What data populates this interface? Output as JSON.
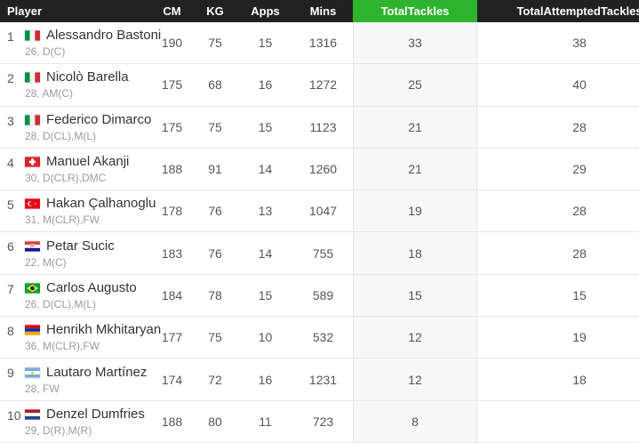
{
  "table": {
    "columns": [
      {
        "key": "player",
        "label": "Player"
      },
      {
        "key": "cm",
        "label": "CM"
      },
      {
        "key": "kg",
        "label": "KG"
      },
      {
        "key": "apps",
        "label": "Apps"
      },
      {
        "key": "mins",
        "label": "Mins"
      },
      {
        "key": "tt",
        "label": "TotalTackles"
      },
      {
        "key": "tat",
        "label": "TotalAttemptedTackles"
      }
    ],
    "rows": [
      {
        "rank": "1",
        "flag": "italy",
        "name": "Alessandro Bastoni",
        "details": "26, D(C)",
        "cm": "190",
        "kg": "75",
        "apps": "15",
        "mins": "1316",
        "tt": "33",
        "tat": "38"
      },
      {
        "rank": "2",
        "flag": "italy",
        "name": "Nicolò Barella",
        "details": "28, AM(C)",
        "cm": "175",
        "kg": "68",
        "apps": "16",
        "mins": "1272",
        "tt": "25",
        "tat": "40"
      },
      {
        "rank": "3",
        "flag": "italy",
        "name": "Federico Dimarco",
        "details": "28, D(CL),M(L)",
        "cm": "175",
        "kg": "75",
        "apps": "15",
        "mins": "1123",
        "tt": "21",
        "tat": "28"
      },
      {
        "rank": "4",
        "flag": "switzerland",
        "name": "Manuel Akanji",
        "details": "30, D(CLR),DMC",
        "cm": "188",
        "kg": "91",
        "apps": "14",
        "mins": "1260",
        "tt": "21",
        "tat": "29"
      },
      {
        "rank": "5",
        "flag": "turkey",
        "name": "Hakan Çalhanoglu",
        "details": "31, M(CLR),FW",
        "cm": "178",
        "kg": "76",
        "apps": "13",
        "mins": "1047",
        "tt": "19",
        "tat": "28"
      },
      {
        "rank": "6",
        "flag": "croatia",
        "name": "Petar Sucic",
        "details": "22, M(C)",
        "cm": "183",
        "kg": "76",
        "apps": "14",
        "mins": "755",
        "tt": "18",
        "tat": "28"
      },
      {
        "rank": "7",
        "flag": "brazil",
        "name": "Carlos Augusto",
        "details": "26, D(CL),M(L)",
        "cm": "184",
        "kg": "78",
        "apps": "15",
        "mins": "589",
        "tt": "15",
        "tat": "15"
      },
      {
        "rank": "8",
        "flag": "armenia",
        "name": "Henrikh Mkhitaryan",
        "details": "36, M(CLR),FW",
        "cm": "177",
        "kg": "75",
        "apps": "10",
        "mins": "532",
        "tt": "12",
        "tat": "19"
      },
      {
        "rank": "9",
        "flag": "argentina",
        "name": "Lautaro Martínez",
        "details": "28, FW",
        "cm": "174",
        "kg": "72",
        "apps": "16",
        "mins": "1231",
        "tt": "12",
        "tat": "18"
      },
      {
        "rank": "10",
        "flag": "netherlands",
        "name": "Denzel Dumfries",
        "details": "29, D(R),M(R)",
        "cm": "188",
        "kg": "80",
        "apps": "11",
        "mins": "723",
        "tt": "8",
        "tat": ""
      }
    ]
  },
  "colors": {
    "header_bg": "#212121",
    "header_text": "#ffffff",
    "accent_green": "#2db32d",
    "tackles_column_bg": "#f7f7f7",
    "row_border": "#e7e7e7",
    "player_name": "#333333",
    "value_text": "#555555",
    "details_text": "#9b9b9b"
  }
}
